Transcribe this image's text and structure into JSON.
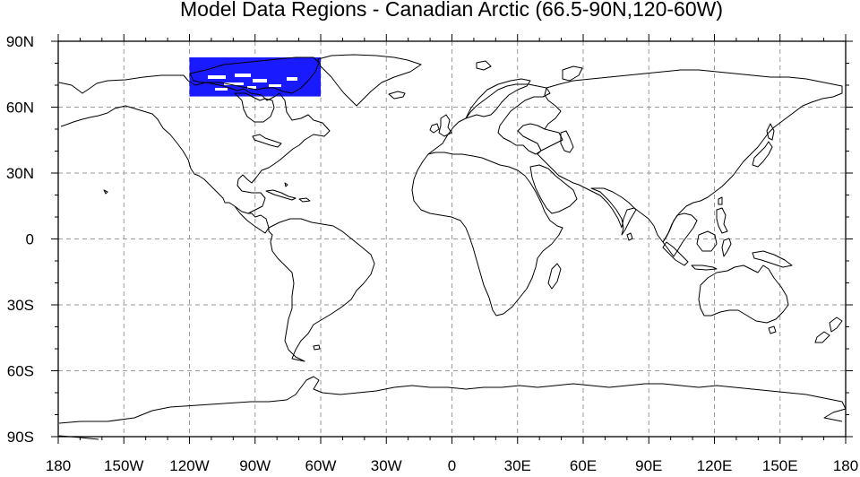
{
  "title": "Model Data Regions - Canadian Arctic (66.5-90N,120-60W)",
  "region_color": "#1a1aff",
  "x_tick_labels": [
    "180",
    "150W",
    "120W",
    "90W",
    "60W",
    "30W",
    "0",
    "30E",
    "60E",
    "90E",
    "120E",
    "150E",
    "180"
  ],
  "y_tick_labels": [
    "90N",
    "60N",
    "30N",
    "0",
    "30S",
    "60S",
    "90S"
  ],
  "map_data": {
    "type": "map",
    "projection": "cylindrical-equidistant",
    "lon_range": [
      -180,
      180
    ],
    "lat_range": [
      -90,
      90
    ],
    "lon_ticks": [
      -180,
      -150,
      -120,
      -90,
      -60,
      -30,
      0,
      30,
      60,
      90,
      120,
      150,
      180
    ],
    "lat_ticks": [
      90,
      60,
      30,
      0,
      -30,
      -60,
      -90
    ],
    "grid": true,
    "region": {
      "lat": [
        66.5,
        90
      ],
      "lon": [
        -120,
        -60
      ]
    }
  }
}
